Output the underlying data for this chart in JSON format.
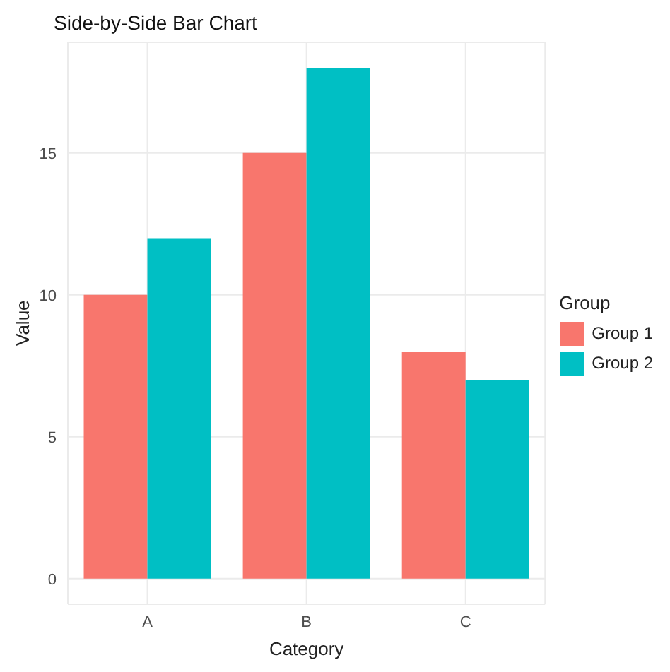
{
  "chart_data": {
    "type": "bar",
    "title": "Side-by-Side Bar Chart",
    "xlabel": "Category",
    "ylabel": "Value",
    "legend_title": "Group",
    "categories": [
      "A",
      "B",
      "C"
    ],
    "series": [
      {
        "name": "Group 1",
        "color": "#f8766d",
        "values": [
          10,
          15,
          8
        ]
      },
      {
        "name": "Group 2",
        "color": "#00bfc4",
        "values": [
          12,
          18,
          7
        ]
      }
    ],
    "ylim": [
      -0.9,
      18.9
    ],
    "yticks": [
      0,
      5,
      10,
      15
    ],
    "grid": true,
    "legend": "right"
  }
}
